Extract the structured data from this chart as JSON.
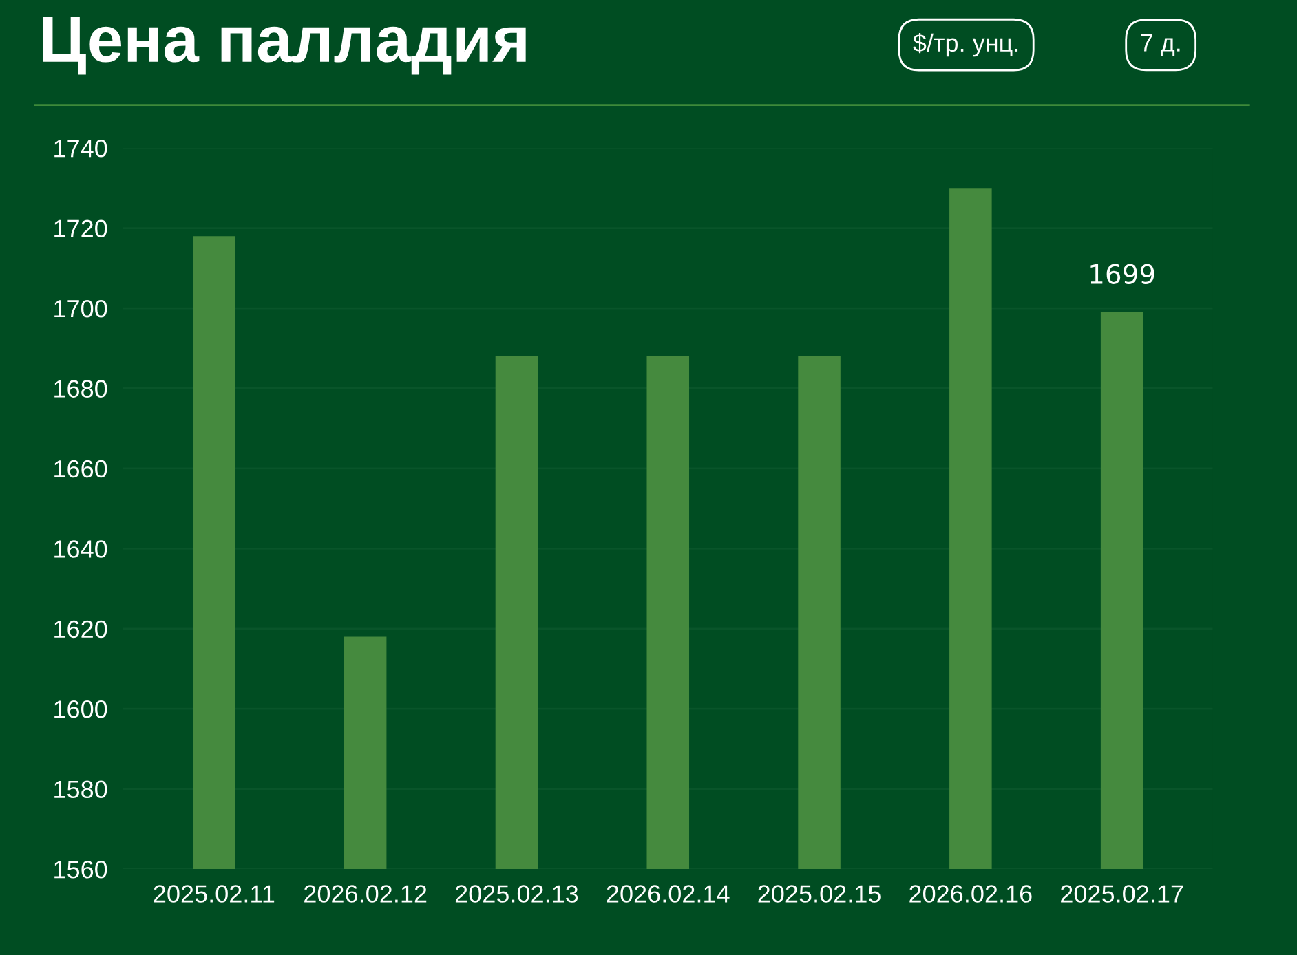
{
  "chart_data": {
    "type": "bar",
    "title": "Цена палладия",
    "annotations": [
      "$/тр. унц.",
      "7 д."
    ],
    "categories": [
      "2025.02.11",
      "2026.02.12",
      "2025.02.13",
      "2026.02.14",
      "2025.02.15",
      "2026.02.16",
      "2025.02.17"
    ],
    "values": [
      1718,
      1618,
      1688,
      1688,
      1688,
      1730,
      1699
    ],
    "value_labels": [
      null,
      null,
      null,
      null,
      null,
      null,
      "1699"
    ],
    "color": "#458a3e",
    "ylim": [
      1560,
      1740
    ],
    "yticks": [
      1560,
      1580,
      1600,
      1620,
      1640,
      1660,
      1680,
      1700,
      1720,
      1740
    ],
    "grid": "y"
  }
}
